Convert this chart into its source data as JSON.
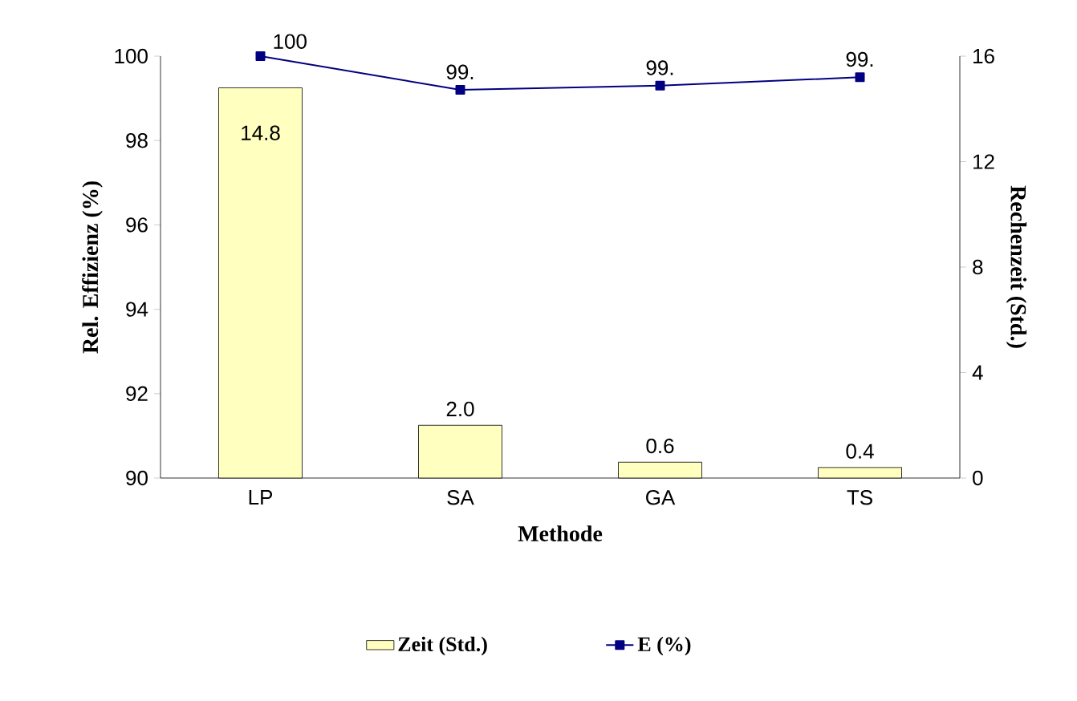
{
  "chart_data": {
    "type": "bar",
    "categories": [
      "LP",
      "SA",
      "GA",
      "TS"
    ],
    "xlabel": "Methode",
    "ylabel": "Rel. Effizienz (%)",
    "y2label": "Rechenzeit (Std.)",
    "ylim": [
      90,
      100
    ],
    "yticks": [
      90,
      92,
      94,
      96,
      98,
      100
    ],
    "y2lim": [
      0,
      16
    ],
    "y2ticks": [
      0,
      4,
      8,
      12,
      16
    ],
    "legend": "bottom",
    "marker": "square",
    "grid": false,
    "series": [
      {
        "name": "Zeit (Std.)",
        "axis": "y2",
        "color": "#ffffc0",
        "values": [
          14.8,
          2.0,
          0.6,
          0.4
        ],
        "value_labels": [
          "14.8",
          "2.0",
          "0.6",
          "0.4"
        ]
      },
      {
        "name": "E (%)",
        "type": "line",
        "axis": "y",
        "color": "#000080",
        "values": [
          100,
          99.2,
          99.3,
          99.5
        ],
        "value_labels": [
          "100",
          "99.",
          "99.",
          "99."
        ]
      }
    ]
  }
}
